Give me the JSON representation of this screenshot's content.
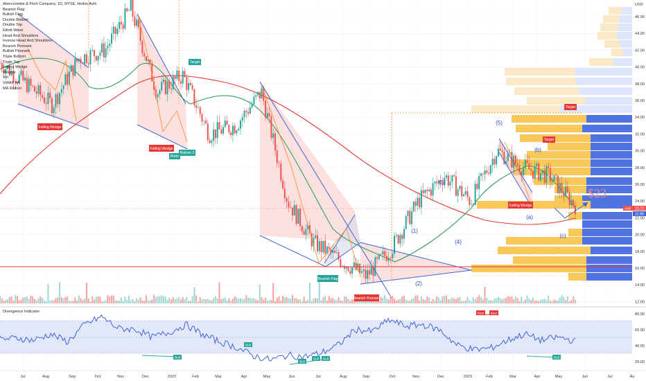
{
  "chart_title": "Abercrombie & Fitch Company, 1D, NYSE, Heikin Ashi",
  "indicators": [
    "Bearish Flag",
    "Bullish Flag",
    "Double Bottom",
    "Double Top",
    "Elliott Wave",
    "Head And Shoulders",
    "Inverse Head And Shoulders",
    "Bearish Pennant",
    "Bullish Pennant",
    "Triple Bottom",
    "Triple Top",
    "Falling Wedge",
    "Volume",
    "Vol",
    "VWAP AA",
    "MA Ribbon"
  ],
  "price_axis": {
    "currency": "USD",
    "ticks": [
      "46.00",
      "44.00",
      "42.00",
      "40.00",
      "38.00",
      "36.00",
      "34.00",
      "32.00",
      "30.00",
      "28.00",
      "26.00",
      "24.00",
      "22.00",
      "20.00",
      "18.00",
      "16.00",
      "14.00",
      "12.00"
    ]
  },
  "price_labels": {
    "ticker": "ANF",
    "last": "23.72",
    "level": "22.86"
  },
  "time_axis": [
    "Jul",
    "Aug",
    "Sep",
    "Oct",
    "Nov",
    "Dec",
    "2022",
    "Feb",
    "Mar",
    "Apr",
    "May",
    "Jun",
    "Jul",
    "Aug",
    "Sep",
    "Oct",
    "Nov",
    "Dec",
    "2023",
    "Feb",
    "Mar",
    "Apr",
    "May",
    "Jun",
    "Jul",
    "Au"
  ],
  "annotations": {
    "falling_wedge_1": "Falling Wedge",
    "falling_wedge_2": "Falling Wedge",
    "falling_wedge_3": "Falling Wedge",
    "bottom_1": "Botto",
    "bottom_2": "Bottom 2",
    "target_1": "Target",
    "target_2": "Target",
    "target_3": "Target",
    "bearish_flag": "Bearish Flag",
    "bearish_pennant": "Bearish Pennant",
    "wave_1": "(1)",
    "wave_2": "(2)",
    "wave_3": "(3)",
    "wave_4": "(4)",
    "wave_5": "(5)",
    "wave_a": "(a)",
    "wave_b": "(b)",
    "wave_c": "(c)",
    "handwritten_target": "$23"
  },
  "osc": {
    "title": "Divergence Indicator",
    "ticks": [
      "80.00",
      "60.00",
      "40.00",
      "20.00"
    ],
    "bull": "Bull",
    "bear": "Bear"
  },
  "chart_data": {
    "type": "line",
    "title": "Abercrombie & Fitch Company, 1D, NYSE, Heikin Ashi",
    "ylim": [
      11.5,
      47.5
    ],
    "x": [
      "2021-07",
      "2021-08",
      "2021-09",
      "2021-10",
      "2021-11",
      "2021-12",
      "2022-01",
      "2022-02",
      "2022-03",
      "2022-04",
      "2022-05",
      "2022-06",
      "2022-07",
      "2022-08",
      "2022-09",
      "2022-10",
      "2022-11",
      "2022-12",
      "2023-01",
      "2023-02",
      "2023-03",
      "2023-04",
      "2023-05"
    ],
    "series": [
      {
        "values": [
          40.5,
          38,
          35.5,
          41,
          42,
          47,
          37,
          39,
          32,
          33,
          37,
          24,
          19,
          17,
          15,
          18.5,
          24,
          27,
          24,
          30,
          28,
          27,
          23.5
        ]
      },
      {
        "values": [
          40,
          39,
          38,
          39,
          40,
          41,
          38,
          37,
          35,
          34,
          35,
          29,
          22,
          20,
          18,
          17.5,
          21,
          23,
          24,
          28,
          27,
          26,
          23
        ]
      },
      {
        "values": [
          26,
          30,
          33,
          35,
          36,
          37.5,
          37.5,
          37,
          36.5,
          36,
          35,
          32,
          29,
          26,
          24,
          22.5,
          22,
          22,
          22,
          22,
          22.4,
          22.5,
          22.86
        ]
      }
    ],
    "osc_values": [
      49,
      51,
      48,
      56,
      46,
      68,
      78,
      63,
      62,
      52,
      58,
      68,
      55,
      46,
      39,
      28,
      23,
      29,
      27,
      32,
      42,
      62,
      59,
      74,
      66,
      68,
      61,
      42,
      36,
      38,
      48,
      56,
      48,
      52,
      47
    ]
  },
  "colors": {
    "up": "#26a69a",
    "down": "#ef5350",
    "ma_red": "#e53935",
    "ma_green": "#43a047",
    "channel": "#3f63d8",
    "orange": "#ff8a1f"
  }
}
